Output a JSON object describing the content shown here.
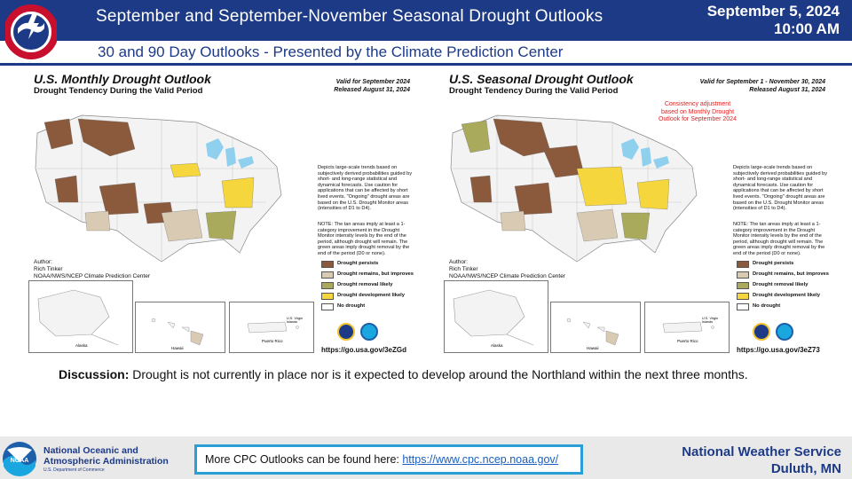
{
  "header": {
    "title": "September and September-November Seasonal Drought Outlooks",
    "date": "September 5, 2024",
    "time": "10:00 AM",
    "subtitle": "30 and 90 Day Outlooks - Presented by the Climate Prediction Center",
    "logo_text": "NATIONAL WEATHER SERVICE"
  },
  "maps": [
    {
      "title": "U.S. Monthly Drought Outlook",
      "tendency": "Drought Tendency During the Valid Period",
      "valid": "Valid for September 2024",
      "released": "Released August 31, 2024",
      "consistency": "",
      "description": "Depicts large-scale trends based on subjectively derived probabilities guided by short- and long-range statistical and dynamical forecasts. Use caution for applications that can be affected by short lived events. \"Ongoing\" drought areas are based on the U.S. Drought Monitor areas (intensities of D1 to D4).",
      "note": "NOTE: The tan areas imply at least a 1-category improvement in the Drought Monitor intensity levels by the end of the period, although drought will remain. The green areas imply drought removal by the end of the period (D0 or none).",
      "author_label": "Author:",
      "author_name": "Rich Tinker",
      "author_org": "NOAA/NWS/NCEP Climate Prediction Center",
      "url": "https://go.usa.gov/3eZGd",
      "insets": {
        "alaska": "Alaska",
        "hawaii": "Hawaii",
        "pr": "Puerto Rico",
        "vi": "U.S. Virgin Islands"
      }
    },
    {
      "title": "U.S. Seasonal Drought Outlook",
      "tendency": "Drought Tendency During the Valid Period",
      "valid": "Valid for September 1 - November 30, 2024",
      "released": "Released August 31, 2024",
      "consistency": "Consistency adjustment based on Monthly Drought Outlook for September 2024",
      "description": "Depicts large-scale trends based on subjectively derived probabilities guided by short- and long-range statistical and dynamical forecasts. Use caution for applications that can be affected by short lived events. \"Ongoing\" drought areas are based on the U.S. Drought Monitor areas (intensities of D1 to D4).",
      "note": "NOTE: The tan areas imply at least a 1-category improvement in the Drought Monitor intensity levels by the end of the period, although drought will remain. The green areas imply drought removal by the end of the period (D0 or none).",
      "author_label": "Author:",
      "author_name": "Rich Tinker",
      "author_org": "NOAA/NWS/NCEP Climate Prediction Center",
      "url": "https://go.usa.gov/3eZ73",
      "insets": {
        "alaska": "Alaska",
        "hawaii": "Hawaii",
        "pr": "Puerto Rico",
        "vi": "U.S. Virgin Islands"
      }
    }
  ],
  "legend": [
    {
      "label": "Drought persists",
      "color": "#8b5a3c"
    },
    {
      "label": "Drought remains, but improves",
      "color": "#d9cbb3"
    },
    {
      "label": "Drought removal likely",
      "color": "#a9aa5c"
    },
    {
      "label": "Drought development likely",
      "color": "#f5d63d"
    },
    {
      "label": "No drought",
      "color": "#ffffff"
    }
  ],
  "discussion": {
    "label": "Discussion:",
    "text": "Drought is not currently in place nor is it expected to develop around the Northland within the next three months."
  },
  "footer": {
    "org_line1": "National Oceanic and",
    "org_line2": "Atmospheric Administration",
    "dept": "U.S. Department of Commerce",
    "noaa_text": "NOAA",
    "link_prefix": "More CPC Outlooks can be found here: ",
    "link_text": "https://www.cpc.ncep.noaa.gov/",
    "nws_line1": "National Weather Service",
    "nws_line2": "Duluth, MN"
  },
  "colors": {
    "brand": "#1d3a86",
    "accent": "#2a9fd6",
    "lakes": "#8fd0ef"
  }
}
